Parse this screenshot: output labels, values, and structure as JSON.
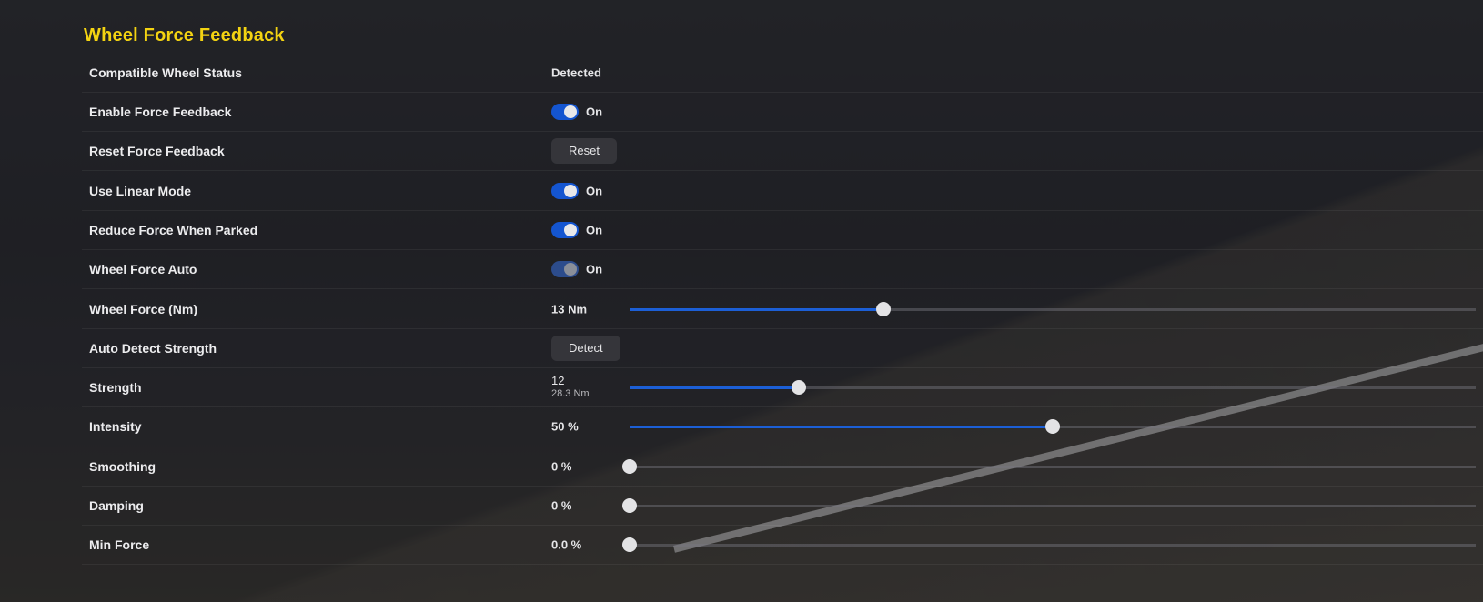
{
  "section_title": "Wheel Force Feedback",
  "accent_color": "#f3d312",
  "toggle_color": "#1455d0",
  "rows": [
    {
      "label": "Compatible Wheel Status",
      "type": "text",
      "value": "Detected"
    },
    {
      "label": "Enable Force Feedback",
      "type": "toggle",
      "state": "On",
      "enabled": true
    },
    {
      "label": "Reset Force Feedback",
      "type": "button",
      "button_label": "Reset"
    },
    {
      "label": "Use Linear Mode",
      "type": "toggle",
      "state": "On",
      "enabled": true
    },
    {
      "label": "Reduce Force When Parked",
      "type": "toggle",
      "state": "On",
      "enabled": true
    },
    {
      "label": "Wheel Force Auto",
      "type": "toggle",
      "state": "On",
      "enabled": false
    },
    {
      "label": "Wheel Force (Nm)",
      "type": "slider",
      "value": "13 Nm",
      "fraction": 0.3
    },
    {
      "label": "Auto Detect Strength",
      "type": "button",
      "button_label": "Detect"
    },
    {
      "label": "Strength",
      "type": "slider",
      "value": "12",
      "sub_value": "28.3 Nm",
      "fraction": 0.2
    },
    {
      "label": "Intensity",
      "type": "slider",
      "value": "50 %",
      "fraction": 0.5
    },
    {
      "label": "Smoothing",
      "type": "slider",
      "value": "0 %",
      "fraction": 0
    },
    {
      "label": "Damping",
      "type": "slider",
      "value": "0 %",
      "fraction": 0
    },
    {
      "label": "Min Force",
      "type": "slider",
      "value": "0.0 %",
      "fraction": 0
    }
  ]
}
